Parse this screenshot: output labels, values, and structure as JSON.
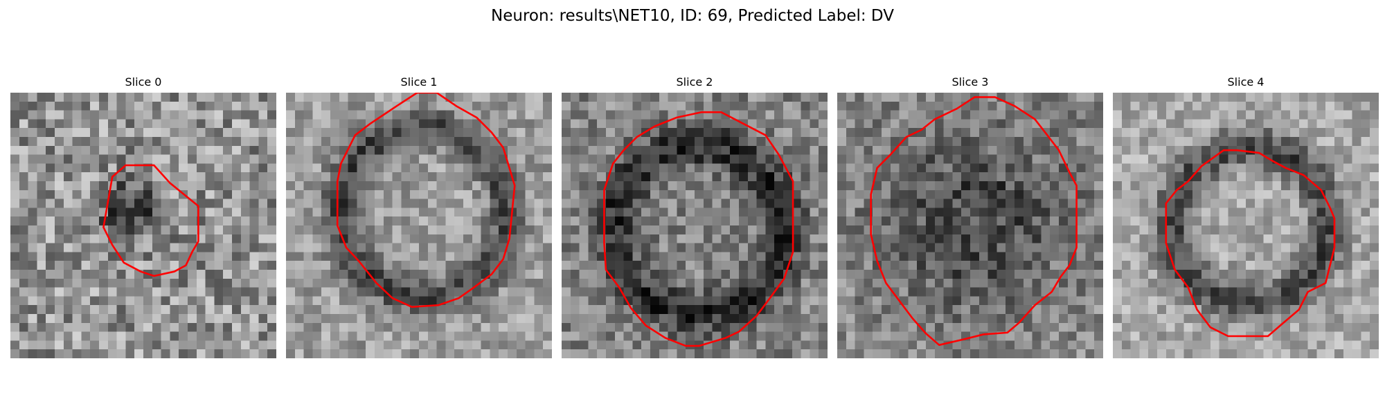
{
  "title": "Neuron: results\\NET10, ID: 69, Predicted Label: DV",
  "panels": [
    {
      "label": "Slice 0"
    },
    {
      "label": "Slice 1"
    },
    {
      "label": "Slice 2"
    },
    {
      "label": "Slice 3"
    },
    {
      "label": "Slice 4"
    }
  ],
  "roi_color": "#ff0000",
  "colormap": "gray"
}
